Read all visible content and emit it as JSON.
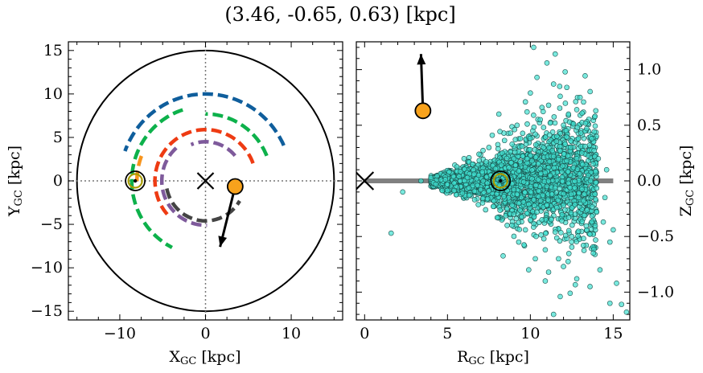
{
  "title": "(3.46, -0.65, 0.63) [kpc]",
  "colors": {
    "arm_blue": "#0f5e9c",
    "arm_green": "#0db14b",
    "arm_orange": "#f7941d",
    "arm_red": "#ee3b13",
    "arm_purple": "#7e5a9b",
    "arm_dark": "#444444",
    "sun_ring": "#a89c00",
    "object_fill": "#f8a21c",
    "stars_fill": "#40e0d0",
    "midplane": "#808080",
    "gridline": "#777777"
  },
  "chart_data": [
    {
      "type": "line",
      "name": "galaxy-top-view",
      "xlabel": "X",
      "xlabel_sub": "GC",
      "xlabel_unit": " [kpc]",
      "ylabel": "Y",
      "ylabel_sub": "GC",
      "ylabel_unit": " [kpc]",
      "xlim": [
        -16,
        16
      ],
      "ylim": [
        -16,
        16
      ],
      "xticks": [
        -10,
        0,
        10
      ],
      "xtick_labels": [
        "−10",
        "0",
        "10"
      ],
      "yticks": [
        -15,
        -10,
        -5,
        0,
        5,
        10,
        15
      ],
      "ytick_labels": [
        "−15",
        "−10",
        "−5",
        "0",
        "5",
        "10",
        "15"
      ],
      "disk_radius": 15,
      "galactic_center": [
        0,
        0
      ],
      "sun": [
        -8.2,
        0
      ],
      "object": [
        3.46,
        -0.65
      ],
      "object_arrow_to": [
        1.7,
        -7.6
      ],
      "arms": [
        {
          "color_key": "arm_blue",
          "radius": 10.0,
          "theta_deg": [
            24,
            160
          ]
        },
        {
          "color_key": "arm_green",
          "radius": 7.7,
          "theta_deg": [
            22,
            90
          ]
        },
        {
          "color_key": "arm_green",
          "radius": 8.6,
          "theta_deg": [
            108,
            243
          ]
        },
        {
          "color_key": "arm_orange",
          "radius": 8.0,
          "theta_deg": [
            159,
            181
          ]
        },
        {
          "color_key": "arm_red",
          "radius": 5.9,
          "theta_deg": [
            20,
            225
          ]
        },
        {
          "color_key": "arm_purple",
          "radius": 4.5,
          "theta_deg": [
            40,
            112
          ]
        },
        {
          "color_key": "arm_purple",
          "radius": 5.1,
          "theta_deg": [
            132,
            272
          ]
        },
        {
          "color_key": "arm_dark",
          "radius": 4.6,
          "theta_deg": [
            191,
            330
          ]
        }
      ]
    },
    {
      "type": "scatter",
      "name": "galaxy-side-view",
      "xlabel": "R",
      "xlabel_sub": "GC",
      "xlabel_unit": " [kpc]",
      "ylabel": "Z",
      "ylabel_sub": "GC",
      "ylabel_unit": " [kpc]",
      "xlim": [
        -0.5,
        16
      ],
      "ylim": [
        -1.25,
        1.25
      ],
      "xticks": [
        0,
        5,
        10,
        15
      ],
      "xtick_labels": [
        "0",
        "5",
        "10",
        "15"
      ],
      "yticks": [
        -1.0,
        -0.5,
        0.0,
        0.5,
        1.0
      ],
      "ytick_labels": [
        "−1.0",
        "−0.5",
        "0.0",
        "0.5",
        "1.0"
      ],
      "galactic_center": [
        0,
        0
      ],
      "sun": [
        8.2,
        0
      ],
      "midplane_range": [
        0,
        15
      ],
      "object": [
        3.52,
        0.63
      ],
      "object_arrow_to": [
        3.4,
        1.14
      ],
      "stars": [
        [
          8.2,
          0.0
        ],
        [
          7.6,
          0.05
        ],
        [
          9.0,
          -0.08
        ],
        [
          10.1,
          0.18
        ],
        [
          11.2,
          0.05
        ],
        [
          6.8,
          -0.04
        ],
        [
          12.0,
          -0.22
        ],
        [
          9.5,
          0.31
        ],
        [
          10.7,
          -0.35
        ],
        [
          8.7,
          0.12
        ],
        [
          7.1,
          0.08
        ],
        [
          11.8,
          0.27
        ],
        [
          12.6,
          0.12
        ],
        [
          9.9,
          -0.21
        ],
        [
          6.2,
          0.03
        ],
        [
          5.4,
          -0.02
        ],
        [
          4.6,
          0.01
        ],
        [
          13.2,
          -0.18
        ],
        [
          10.3,
          0.42
        ],
        [
          11.5,
          -0.46
        ],
        [
          12.9,
          0.38
        ],
        [
          9.2,
          0.5
        ],
        [
          10.6,
          0.55
        ],
        [
          11.1,
          0.68
        ],
        [
          12.3,
          0.6
        ],
        [
          13.4,
          0.47
        ],
        [
          10.9,
          -0.62
        ],
        [
          11.7,
          -0.7
        ],
        [
          12.5,
          -0.5
        ],
        [
          9.7,
          -0.44
        ],
        [
          8.3,
          0.25
        ],
        [
          7.8,
          -0.18
        ],
        [
          8.9,
          0.33
        ],
        [
          6.5,
          0.15
        ],
        [
          5.9,
          -0.11
        ],
        [
          7.3,
          -0.26
        ],
        [
          10.0,
          0.79
        ],
        [
          11.4,
          0.87
        ],
        [
          10.4,
          0.93
        ],
        [
          12.1,
          0.98
        ],
        [
          11.0,
          1.06
        ],
        [
          10.2,
          1.2
        ],
        [
          12.8,
          -0.88
        ],
        [
          13.8,
          -0.65
        ],
        [
          13.0,
          0.75
        ],
        [
          14.1,
          0.2
        ],
        [
          14.4,
          -0.37
        ],
        [
          13.6,
          -0.95
        ],
        [
          14.2,
          -0.8
        ],
        [
          15.2,
          -0.92
        ],
        [
          14.8,
          -1.1
        ],
        [
          15.5,
          -1.11
        ],
        [
          12.6,
          -1.28
        ],
        [
          11.4,
          -1.2
        ],
        [
          11.8,
          -1.04
        ],
        [
          14.6,
          0.1
        ],
        [
          15.0,
          -0.44
        ],
        [
          1.6,
          -0.47
        ],
        [
          2.3,
          -0.1
        ],
        [
          3.4,
          0.0
        ],
        [
          4.0,
          0.03
        ],
        [
          4.3,
          -0.03
        ],
        [
          5.1,
          0.08
        ],
        [
          6.0,
          0.2
        ],
        [
          6.9,
          0.24
        ],
        [
          7.5,
          0.3
        ],
        [
          8.0,
          -0.33
        ],
        [
          8.6,
          -0.4
        ],
        [
          9.3,
          -0.55
        ],
        [
          9.8,
          0.62
        ],
        [
          10.8,
          0.3
        ],
        [
          11.3,
          -0.12
        ],
        [
          12.2,
          0.18
        ],
        [
          12.7,
          -0.3
        ],
        [
          13.1,
          0.25
        ],
        [
          9.1,
          0.14
        ],
        [
          8.4,
          -0.14
        ],
        [
          7.9,
          0.11
        ],
        [
          10.5,
          -0.09
        ],
        [
          11.9,
          0.08
        ],
        [
          12.4,
          -0.06
        ],
        [
          9.6,
          -0.01
        ],
        [
          10.1,
          0.02
        ],
        [
          7.0,
          -0.08
        ],
        [
          6.6,
          0.06
        ],
        [
          5.7,
          0.04
        ],
        [
          6.3,
          -0.13
        ],
        [
          8.8,
          0.43
        ],
        [
          9.4,
          0.38
        ],
        [
          10.8,
          0.48
        ],
        [
          11.6,
          0.4
        ],
        [
          12.0,
          0.5
        ],
        [
          11.9,
          -0.36
        ],
        [
          10.4,
          -0.28
        ],
        [
          9.0,
          -0.3
        ],
        [
          13.5,
          0.05
        ],
        [
          13.9,
          -0.12
        ],
        [
          8.1,
          0.6
        ],
        [
          7.7,
          0.41
        ],
        [
          9.9,
          -0.8
        ],
        [
          10.9,
          -0.9
        ],
        [
          11.2,
          0.52
        ],
        [
          12.9,
          -0.15
        ],
        [
          13.3,
          0.31
        ],
        [
          12.1,
          0.33
        ],
        [
          11.4,
          0.22
        ],
        [
          10.2,
          -0.17
        ],
        [
          9.8,
          0.2
        ],
        [
          8.5,
          0.05
        ],
        [
          7.4,
          -0.02
        ],
        [
          9.3,
          0.09
        ],
        [
          11.0,
          -0.05
        ],
        [
          12.3,
          -0.02
        ],
        [
          10.6,
          0.11
        ],
        [
          10.0,
          -0.35
        ],
        [
          9.2,
          -0.12
        ],
        [
          8.9,
          -0.22
        ],
        [
          11.6,
          -0.24
        ],
        [
          12.8,
          0.2
        ],
        [
          13.7,
          0.38
        ],
        [
          11.5,
          1.14
        ],
        [
          12.2,
          0.84
        ],
        [
          11.8,
          0.76
        ],
        [
          12.8,
          0.64
        ],
        [
          13.9,
          0.58
        ],
        [
          10.7,
          0.66
        ],
        [
          9.7,
          0.71
        ],
        [
          14.8,
          -0.55
        ],
        [
          13.2,
          -0.58
        ],
        [
          12.0,
          -0.77
        ],
        [
          10.3,
          -0.7
        ],
        [
          11.1,
          -0.82
        ],
        [
          12.4,
          -1.01
        ],
        [
          13.6,
          -0.48
        ],
        [
          14.0,
          -0.28
        ],
        [
          14.5,
          -0.15
        ],
        [
          15.8,
          -1.18
        ]
      ],
      "jitter_bulk_seed": 7,
      "jitter_bulk_count": 2600
    }
  ]
}
